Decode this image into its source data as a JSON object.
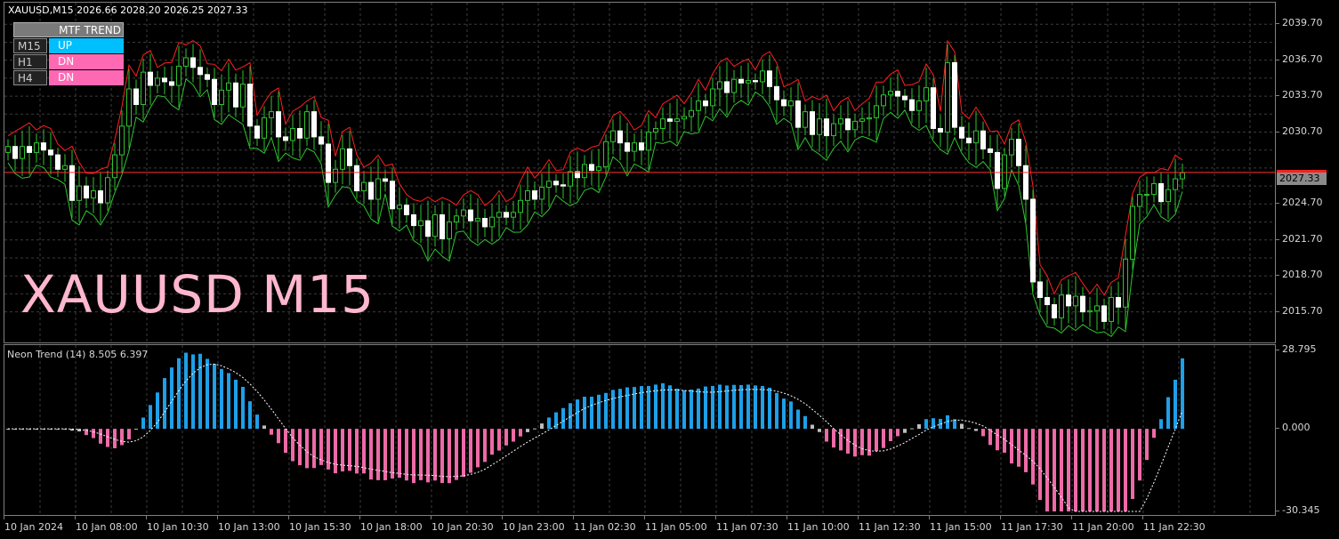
{
  "chart": {
    "title": "XAUUSD,M15  2026.66 2028.20 2026.25 2027.33",
    "big_label": "XAUUSD M15",
    "current_price": "2027.33",
    "colors": {
      "background": "#000000",
      "grid": "#3c3c3c",
      "candle": "#ffffff",
      "wick": "#2fc42f",
      "band_upper": "#ff2020",
      "band_lower": "#2fc42f",
      "price_line": "#ff3030",
      "hist_up": "#1e9fe8",
      "hist_down": "#ee6aa6",
      "hist_neutral": "#bdbdbd",
      "signal": "#ffffff"
    }
  },
  "mtf_trend": {
    "header": "MTF TREND",
    "rows": [
      {
        "tf": "M15",
        "value": "UP",
        "color": "#00bfff"
      },
      {
        "tf": "H1",
        "value": "DN",
        "color": "#ff69b4"
      },
      {
        "tf": "H4",
        "value": "DN",
        "color": "#ff69b4"
      }
    ]
  },
  "price_axis": {
    "labels": [
      "2039.70",
      "2036.70",
      "2033.70",
      "2030.70",
      "2024.70",
      "2021.70",
      "2018.70",
      "2015.70"
    ]
  },
  "indicator": {
    "title": "Neon Trend (14) 8.505 6.397",
    "axis_labels": [
      "28.795",
      "0.000",
      "-30.345"
    ]
  },
  "time_axis": {
    "labels": [
      "10 Jan 2024",
      "10 Jan 08:00",
      "10 Jan 10:30",
      "10 Jan 13:00",
      "10 Jan 15:30",
      "10 Jan 18:00",
      "10 Jan 20:30",
      "10 Jan 23:00",
      "11 Jan 02:30",
      "11 Jan 05:00",
      "11 Jan 07:30",
      "11 Jan 10:00",
      "11 Jan 12:30",
      "11 Jan 15:00",
      "11 Jan 17:30",
      "11 Jan 20:00",
      "11 Jan 22:30"
    ]
  },
  "chart_data": {
    "type": "candlestick",
    "symbol": "XAUUSD",
    "timeframe": "M15",
    "ylim": [
      2013.0,
      2041.5
    ],
    "close": [
      2029.5,
      2028.5,
      2029.5,
      2029.0,
      2029.8,
      2029.2,
      2028.8,
      2027.6,
      2027.9,
      2025.0,
      2026.2,
      2025.2,
      2025.8,
      2024.8,
      2026.9,
      2028.8,
      2031.2,
      2034.3,
      2033.0,
      2035.7,
      2034.6,
      2035.2,
      2034.9,
      2034.6,
      2036.2,
      2036.9,
      2036.1,
      2035.5,
      2035.1,
      2033.0,
      2034.2,
      2034.8,
      2032.8,
      2034.7,
      2031.2,
      2030.2,
      2031.9,
      2032.4,
      2030.3,
      2030.0,
      2031.0,
      2030.2,
      2032.4,
      2030.3,
      2029.7,
      2026.5,
      2027.6,
      2029.3,
      2027.9,
      2025.8,
      2026.5,
      2025.1,
      2026.8,
      2026.6,
      2024.3,
      2024.6,
      2023.8,
      2022.9,
      2023.3,
      2022.0,
      2023.8,
      2021.8,
      2023.2,
      2023.7,
      2024.2,
      2023.3,
      2023.5,
      2022.8,
      2023.6,
      2024.0,
      2023.6,
      2024.0,
      2025.0,
      2025.8,
      2025.1,
      2026.1,
      2026.6,
      2026.3,
      2026.2,
      2027.4,
      2026.9,
      2028.0,
      2027.5,
      2027.8,
      2029.9,
      2030.8,
      2029.8,
      2029.1,
      2029.8,
      2029.2,
      2030.7,
      2031.0,
      2031.8,
      2031.6,
      2031.8,
      2032.0,
      2032.5,
      2033.3,
      2032.9,
      2034.3,
      2034.9,
      2034.0,
      2035.1,
      2034.8,
      2035.0,
      2034.9,
      2035.8,
      2034.5,
      2033.4,
      2032.9,
      2033.3,
      2031.1,
      2032.4,
      2030.5,
      2031.8,
      2030.4,
      2031.4,
      2031.8,
      2030.9,
      2031.6,
      2031.8,
      2031.9,
      2032.9,
      2033.8,
      2034.1,
      2033.7,
      2033.4,
      2032.5,
      2033.3,
      2034.4,
      2031.0,
      2030.7,
      2036.5,
      2031.1,
      2030.2,
      2029.8,
      2030.8,
      2029.3,
      2029.0,
      2026.0,
      2028.8,
      2030.1,
      2027.9,
      2025.1,
      2018.2,
      2016.9,
      2016.3,
      2015.2,
      2017.1,
      2016.2,
      2017.0,
      2015.7,
      2015.8,
      2016.2,
      2014.9,
      2016.9,
      2016.1,
      2020.1,
      2024.5,
      2025.5,
      2025.5,
      2026.4,
      2024.9,
      2025.9,
      2026.8,
      2027.3
    ]
  }
}
